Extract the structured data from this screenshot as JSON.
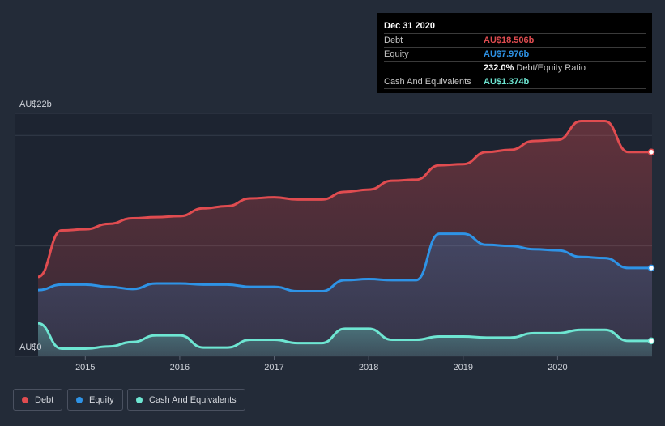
{
  "tooltip": {
    "date": "Dec 31 2020",
    "rows": [
      {
        "label": "Debt",
        "value": "AU$18.506b",
        "color": "#e04c50"
      },
      {
        "label": "Equity",
        "value": "AU$7.976b",
        "color": "#2e93e6"
      },
      {
        "ratio_value": "232.0%",
        "ratio_label": "Debt/Equity Ratio"
      },
      {
        "label": "Cash And Equivalents",
        "value": "AU$1.374b",
        "color": "#6ee6d2"
      }
    ]
  },
  "legend": [
    {
      "label": "Debt",
      "color": "#e04c50"
    },
    {
      "label": "Equity",
      "color": "#2e93e6"
    },
    {
      "label": "Cash And Equivalents",
      "color": "#6ee6d2"
    }
  ],
  "chart_data": {
    "type": "area",
    "title": "",
    "xlabel": "",
    "ylabel": "",
    "y_tick_labels": [
      "AU$22b",
      "AU$0"
    ],
    "ylim": [
      0,
      22
    ],
    "xlim": [
      2014.5,
      2021.0
    ],
    "x_tick_labels": [
      "2015",
      "2016",
      "2017",
      "2018",
      "2019",
      "2020"
    ],
    "x_ticks": [
      2015,
      2016,
      2017,
      2018,
      2019,
      2020
    ],
    "series": [
      {
        "name": "Debt",
        "color": "#e04c50",
        "x": [
          2014.5,
          2014.75,
          2015.0,
          2015.25,
          2015.5,
          2015.75,
          2016.0,
          2016.25,
          2016.5,
          2016.75,
          2017.0,
          2017.25,
          2017.5,
          2017.75,
          2018.0,
          2018.25,
          2018.5,
          2018.75,
          2019.0,
          2019.25,
          2019.5,
          2019.75,
          2020.0,
          2020.25,
          2020.5,
          2020.75,
          2021.0
        ],
        "values": [
          7.2,
          11.4,
          11.5,
          12.0,
          12.5,
          12.6,
          12.7,
          13.4,
          13.6,
          14.3,
          14.4,
          14.2,
          14.2,
          14.9,
          15.1,
          15.9,
          16.0,
          17.3,
          17.4,
          18.5,
          18.7,
          19.5,
          19.6,
          21.3,
          21.3,
          18.5,
          18.5
        ]
      },
      {
        "name": "Equity",
        "color": "#2e93e6",
        "x": [
          2014.5,
          2014.75,
          2015.0,
          2015.25,
          2015.5,
          2015.75,
          2016.0,
          2016.25,
          2016.5,
          2016.75,
          2017.0,
          2017.25,
          2017.5,
          2017.75,
          2018.0,
          2018.25,
          2018.5,
          2018.75,
          2019.0,
          2019.25,
          2019.5,
          2019.75,
          2020.0,
          2020.25,
          2020.5,
          2020.75,
          2021.0
        ],
        "values": [
          6.0,
          6.5,
          6.5,
          6.3,
          6.1,
          6.6,
          6.6,
          6.5,
          6.5,
          6.3,
          6.3,
          5.9,
          5.9,
          6.9,
          7.0,
          6.9,
          6.9,
          11.1,
          11.1,
          10.1,
          10.0,
          9.7,
          9.6,
          9.0,
          8.9,
          8.0,
          8.0
        ]
      },
      {
        "name": "Cash And Equivalents",
        "color": "#6ee6d2",
        "x": [
          2014.5,
          2014.75,
          2015.0,
          2015.25,
          2015.5,
          2015.75,
          2016.0,
          2016.25,
          2016.5,
          2016.75,
          2017.0,
          2017.25,
          2017.5,
          2017.75,
          2018.0,
          2018.25,
          2018.5,
          2018.75,
          2019.0,
          2019.25,
          2019.5,
          2019.75,
          2020.0,
          2020.25,
          2020.5,
          2020.75,
          2021.0
        ],
        "values": [
          3.0,
          0.7,
          0.7,
          0.9,
          1.3,
          1.9,
          1.9,
          0.8,
          0.8,
          1.5,
          1.5,
          1.2,
          1.2,
          2.5,
          2.5,
          1.5,
          1.5,
          1.8,
          1.8,
          1.7,
          1.7,
          2.1,
          2.1,
          2.4,
          2.4,
          1.4,
          1.4
        ]
      }
    ]
  }
}
